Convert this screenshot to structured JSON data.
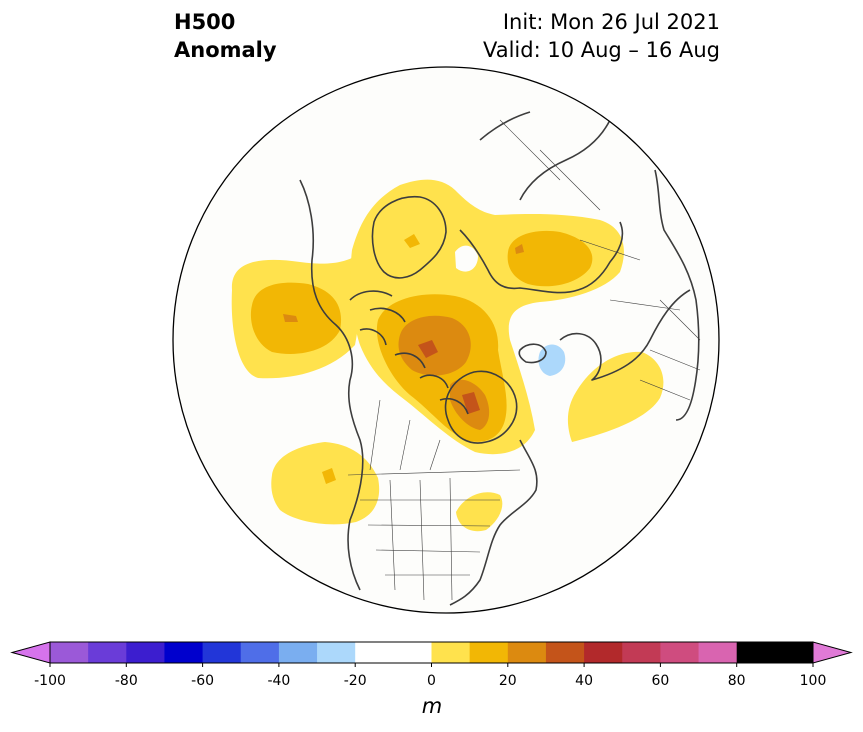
{
  "title": {
    "line1": "H500",
    "line2": "Anomaly",
    "init": "Init: Mon 26 Jul 2021",
    "valid": "Valid: 10 Aug – 16 Aug"
  },
  "map": {
    "projection": "north-polar-stereographic",
    "background_color": "#fdfdfb",
    "coastline_color": "#3d3d3d",
    "anomaly_regions": [
      {
        "name": "north-pacific-high",
        "max_level": 30
      },
      {
        "name": "arctic-canada-high",
        "max_level": 50
      },
      {
        "name": "hudson-bay-high",
        "max_level": 50
      },
      {
        "name": "scandinavia-russia-high",
        "max_level": 30
      },
      {
        "name": "north-atlantic-high",
        "max_level": 20
      },
      {
        "name": "northeast-pacific-high",
        "max_level": 30
      },
      {
        "name": "barents-sea-low",
        "max_level": -20
      }
    ]
  },
  "colorbar": {
    "levels": [
      -100,
      -90,
      -80,
      -70,
      -60,
      -50,
      -40,
      -30,
      -20,
      -10,
      10,
      20,
      30,
      40,
      50,
      60,
      70,
      80,
      90,
      100
    ],
    "colors": [
      "#9b59d8",
      "#6a3cd8",
      "#3c1ecf",
      "#0000cd",
      "#2236d8",
      "#4f6ee8",
      "#7aaef0",
      "#acd8fb",
      "#ffffff",
      "#ffffff",
      "#ffe24d",
      "#f2b705",
      "#dc8a10",
      "#c4541a",
      "#b2292b",
      "#c23a55",
      "#cf4c7f",
      "#d964b0"
    ],
    "extend_min_color": "#d673ec",
    "extend_max_color": "#e07ad7",
    "ticks": [
      "-100",
      "-80",
      "-60",
      "-40",
      "-20",
      "0",
      "20",
      "40",
      "60",
      "80",
      "100"
    ],
    "tick_values": [
      -100,
      -80,
      -60,
      -40,
      -20,
      0,
      20,
      40,
      60,
      80,
      100
    ],
    "unit_label": "m"
  }
}
